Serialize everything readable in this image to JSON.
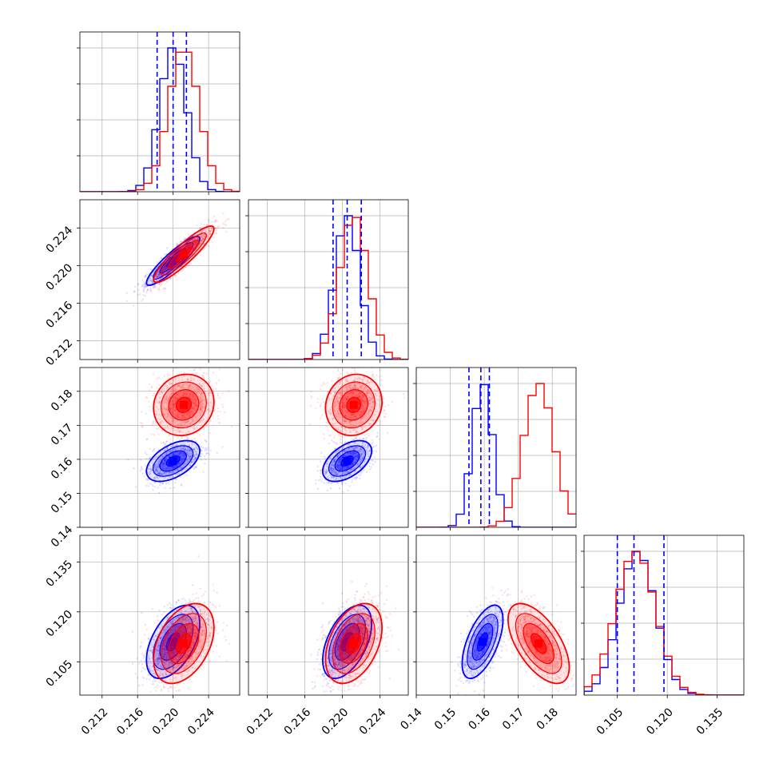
{
  "chart_data": {
    "type": "corner",
    "title": "",
    "grid": true,
    "legend": "none",
    "colors": {
      "series_a": "#0000ff",
      "series_b": "#ff0000"
    },
    "series": [
      {
        "color": "#0000ff",
        "mean": [
          0.22,
          0.2205,
          0.1595,
          0.111
        ],
        "sd": [
          0.0015,
          0.0013,
          0.003,
          0.0055
        ],
        "quantiles": [
          [
            0.2182,
            0.22,
            0.2215
          ],
          [
            0.219,
            0.2205,
            0.222
          ],
          [
            0.1555,
            0.159,
            0.1615
          ],
          [
            0.105,
            0.11,
            0.119
          ]
        ],
        "correlations": {
          "0-1": 0.9,
          "0-2": 0.5,
          "1-2": 0.5,
          "0-3": 0.5,
          "1-3": 0.5,
          "2-3": 0.6
        }
      },
      {
        "color": "#ff0000",
        "mean": [
          0.2212,
          0.2212,
          0.176,
          0.1105
        ],
        "sd": [
          0.0017,
          0.0015,
          0.0045,
          0.006
        ],
        "correlations": {
          "0-1": 0.9,
          "0-2": 0.1,
          "1-2": 0.1,
          "0-3": 0.4,
          "1-3": 0.4,
          "2-3": -0.6
        }
      }
    ],
    "axes": [
      {
        "range": [
          0.2095,
          0.2275
        ],
        "ticks": [
          "0.212",
          "0.216",
          "0.220",
          "0.224"
        ],
        "tick_values": [
          0.212,
          0.216,
          0.22,
          0.224
        ]
      },
      {
        "range": [
          0.21,
          0.227
        ],
        "ticks": [
          "0.212",
          "0.216",
          "0.220",
          "0.224"
        ],
        "tick_values": [
          0.212,
          0.216,
          0.22,
          0.224
        ]
      },
      {
        "range": [
          0.14,
          0.187
        ],
        "ticks": [
          "0.14",
          "0.15",
          "0.16",
          "0.17",
          "0.18"
        ],
        "tick_values": [
          0.14,
          0.15,
          0.16,
          0.17,
          0.18
        ]
      },
      {
        "range": [
          0.095,
          0.143
        ],
        "ticks": [
          "0.105",
          "0.120",
          "0.135"
        ],
        "tick_values": [
          0.105,
          0.12,
          0.135
        ]
      }
    ]
  }
}
